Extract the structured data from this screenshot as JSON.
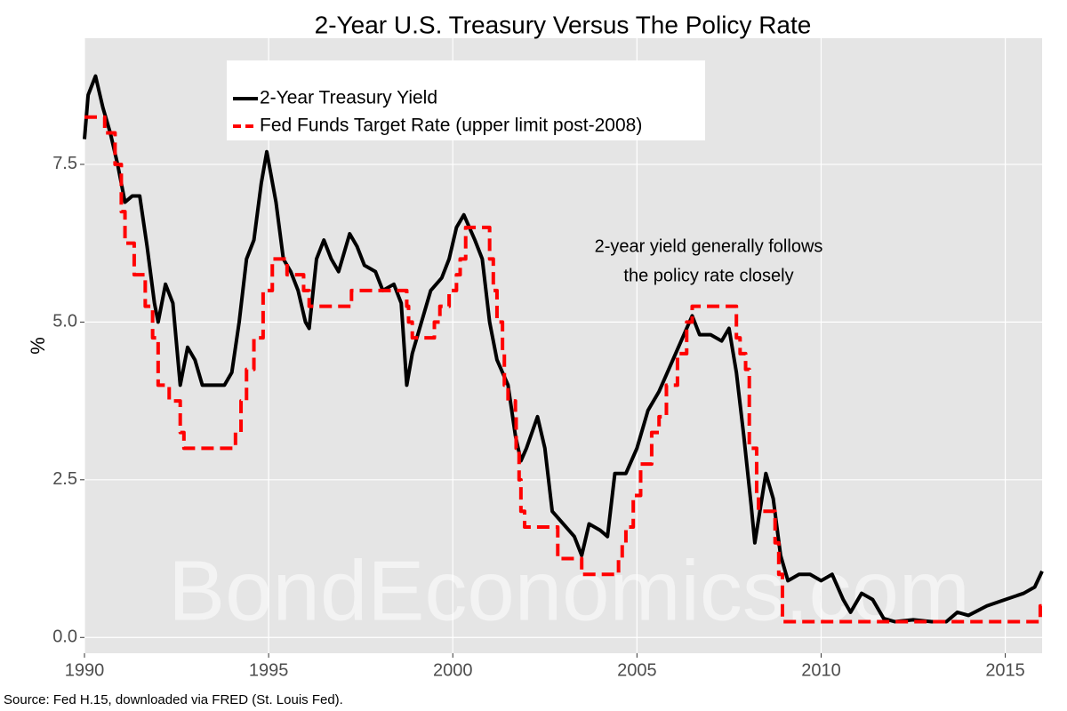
{
  "chart_data": {
    "type": "line",
    "title": "2-Year U.S. Treasury Versus The Policy Rate",
    "y_label": "%",
    "annotation": [
      "2-year yield generally follows",
      "the policy rate closely"
    ],
    "watermark": "BondEconomics.com",
    "source": "Source: Fed H.15, downloaded via FRED (St. Louis Fed).",
    "xlim": [
      1990,
      2016
    ],
    "xticks": [
      1990,
      1995,
      2000,
      2005,
      2010,
      2015
    ],
    "ylim": [
      -0.25,
      9.5
    ],
    "yticks": [
      {
        "value": 0,
        "label": "0.0"
      },
      2.5,
      {
        "value": 5,
        "label": "5.0"
      },
      7.5
    ],
    "grid": true,
    "legend": "top-left",
    "series": [
      {
        "name": "2-Year Treasury Yield",
        "color": "#000000",
        "dash": false,
        "x": [
          1990.0,
          1990.1,
          1990.3,
          1990.5,
          1990.7,
          1990.9,
          1991.1,
          1991.3,
          1991.5,
          1991.7,
          1991.9,
          1992.0,
          1992.2,
          1992.4,
          1992.6,
          1992.8,
          1993.0,
          1993.2,
          1993.5,
          1993.8,
          1994.0,
          1994.2,
          1994.4,
          1994.6,
          1994.8,
          1994.95,
          1995.2,
          1995.4,
          1995.6,
          1995.8,
          1996.0,
          1996.1,
          1996.3,
          1996.5,
          1996.7,
          1996.9,
          1997.2,
          1997.4,
          1997.6,
          1997.9,
          1998.1,
          1998.4,
          1998.6,
          1998.75,
          1998.9,
          1999.1,
          1999.4,
          1999.7,
          1999.9,
          2000.1,
          2000.3,
          2000.6,
          2000.8,
          2001.0,
          2001.2,
          2001.5,
          2001.7,
          2001.85,
          2002.0,
          2002.3,
          2002.5,
          2002.7,
          2003.0,
          2003.3,
          2003.5,
          2003.7,
          2004.0,
          2004.2,
          2004.4,
          2004.7,
          2005.0,
          2005.3,
          2005.6,
          2005.9,
          2006.2,
          2006.5,
          2006.7,
          2007.0,
          2007.3,
          2007.5,
          2007.7,
          2007.9,
          2008.1,
          2008.2,
          2008.5,
          2008.7,
          2008.9,
          2009.1,
          2009.4,
          2009.7,
          2010.0,
          2010.3,
          2010.6,
          2010.8,
          2011.1,
          2011.4,
          2011.7,
          2012.0,
          2012.5,
          2013.0,
          2013.4,
          2013.7,
          2014.0,
          2014.5,
          2015.0,
          2015.5,
          2015.8,
          2016.0
        ],
        "values": [
          7.9,
          8.6,
          8.9,
          8.4,
          8.0,
          7.5,
          6.9,
          7.0,
          7.0,
          6.2,
          5.3,
          5.0,
          5.6,
          5.3,
          4.0,
          4.6,
          4.4,
          4.0,
          4.0,
          4.0,
          4.2,
          5.0,
          6.0,
          6.3,
          7.2,
          7.7,
          6.9,
          6.0,
          5.8,
          5.5,
          5.0,
          4.9,
          6.0,
          6.3,
          6.0,
          5.8,
          6.4,
          6.2,
          5.9,
          5.8,
          5.5,
          5.6,
          5.3,
          4.0,
          4.5,
          4.9,
          5.5,
          5.7,
          6.0,
          6.5,
          6.7,
          6.3,
          6.0,
          5.0,
          4.4,
          4.0,
          3.2,
          2.8,
          3.0,
          3.5,
          3.0,
          2.0,
          1.8,
          1.6,
          1.3,
          1.8,
          1.7,
          1.6,
          2.6,
          2.6,
          3.0,
          3.6,
          3.9,
          4.3,
          4.7,
          5.1,
          4.8,
          4.8,
          4.7,
          4.9,
          4.2,
          3.2,
          2.1,
          1.5,
          2.6,
          2.2,
          1.3,
          0.9,
          1.0,
          1.0,
          0.9,
          1.0,
          0.6,
          0.4,
          0.7,
          0.6,
          0.3,
          0.25,
          0.28,
          0.25,
          0.25,
          0.4,
          0.35,
          0.5,
          0.6,
          0.7,
          0.8,
          1.05
        ]
      },
      {
        "name": "Fed Funds Target Rate (upper limit post-2008)",
        "color": "#ff0000",
        "dash": true,
        "x": [
          1990.0,
          1990.55,
          1990.55,
          1990.83,
          1990.83,
          1991.0,
          1991.0,
          1991.1,
          1991.1,
          1991.35,
          1991.35,
          1991.65,
          1991.65,
          1991.85,
          1991.85,
          1992.0,
          1992.0,
          1992.3,
          1992.3,
          1992.6,
          1992.6,
          1992.7,
          1992.7,
          1994.1,
          1994.1,
          1994.25,
          1994.25,
          1994.4,
          1994.4,
          1994.6,
          1994.6,
          1994.85,
          1994.85,
          1995.1,
          1995.1,
          1995.5,
          1995.5,
          1995.95,
          1995.95,
          1996.1,
          1996.1,
          1997.25,
          1997.25,
          1998.75,
          1998.75,
          1998.8,
          1998.8,
          1998.9,
          1998.9,
          1999.5,
          1999.5,
          1999.65,
          1999.65,
          1999.9,
          1999.9,
          2000.1,
          2000.1,
          2000.2,
          2000.2,
          2000.35,
          2000.35,
          2001.0,
          2001.0,
          2001.1,
          2001.1,
          2001.2,
          2001.2,
          2001.35,
          2001.35,
          2001.4,
          2001.4,
          2001.5,
          2001.5,
          2001.7,
          2001.7,
          2001.72,
          2001.72,
          2001.8,
          2001.8,
          2001.85,
          2001.85,
          2001.95,
          2001.95,
          2002.85,
          2002.85,
          2003.5,
          2003.5,
          2004.5,
          2004.5,
          2004.6,
          2004.6,
          2004.7,
          2004.7,
          2004.9,
          2004.9,
          2005.1,
          2005.1,
          2005.4,
          2005.4,
          2005.6,
          2005.6,
          2005.8,
          2005.8,
          2006.1,
          2006.1,
          2006.35,
          2006.35,
          2006.5,
          2006.5,
          2007.7,
          2007.7,
          2007.8,
          2007.8,
          2007.95,
          2007.95,
          2008.05,
          2008.05,
          2008.25,
          2008.25,
          2008.3,
          2008.3,
          2008.75,
          2008.75,
          2008.85,
          2008.85,
          2008.95,
          2008.95,
          2015.95,
          2015.95,
          2016.0
        ],
        "values": [
          8.25,
          8.25,
          8.0,
          8.0,
          7.5,
          7.5,
          6.75,
          6.75,
          6.25,
          6.25,
          5.75,
          5.75,
          5.25,
          5.25,
          4.75,
          4.75,
          4.0,
          4.0,
          3.75,
          3.75,
          3.25,
          3.25,
          3.0,
          3.0,
          3.25,
          3.25,
          3.75,
          3.75,
          4.25,
          4.25,
          4.75,
          4.75,
          5.5,
          5.5,
          6.0,
          6.0,
          5.75,
          5.75,
          5.5,
          5.5,
          5.25,
          5.25,
          5.5,
          5.5,
          5.25,
          5.25,
          5.0,
          5.0,
          4.75,
          4.75,
          5.0,
          5.0,
          5.25,
          5.25,
          5.5,
          5.5,
          5.75,
          5.75,
          6.0,
          6.0,
          6.5,
          6.5,
          6.0,
          6.0,
          5.5,
          5.5,
          5.0,
          5.0,
          4.5,
          4.5,
          4.0,
          4.0,
          3.75,
          3.75,
          3.5,
          3.5,
          3.0,
          3.0,
          2.5,
          2.5,
          2.0,
          2.0,
          1.75,
          1.75,
          1.25,
          1.25,
          1.0,
          1.0,
          1.25,
          1.25,
          1.5,
          1.5,
          1.75,
          1.75,
          2.25,
          2.25,
          2.75,
          2.75,
          3.25,
          3.25,
          3.5,
          3.5,
          4.0,
          4.0,
          4.5,
          4.5,
          5.0,
          5.0,
          5.25,
          5.25,
          4.75,
          4.75,
          4.5,
          4.5,
          4.25,
          4.25,
          3.0,
          3.0,
          2.25,
          2.25,
          2.0,
          2.0,
          1.5,
          1.5,
          1.0,
          1.0,
          0.25,
          0.25,
          0.5,
          0.5
        ]
      }
    ]
  }
}
